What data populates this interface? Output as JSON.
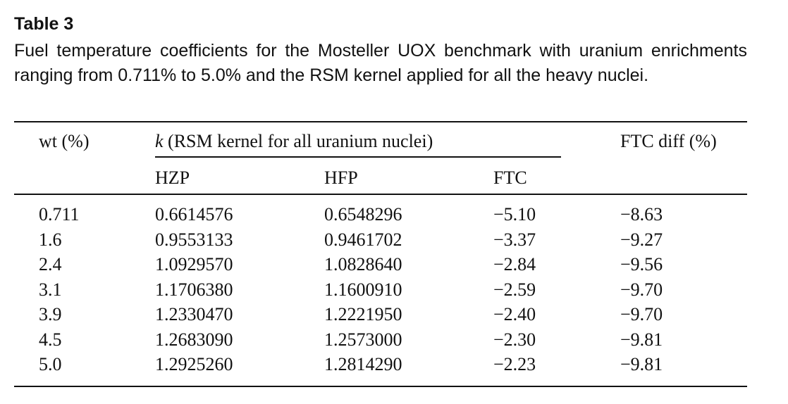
{
  "table": {
    "label": "Table 3",
    "caption": "Fuel temperature coefficients for the Mosteller UOX benchmark with uranium enrichments ranging from 0.711% to 5.0% and the RSM kernel applied for all the heavy nuclei.",
    "headers": {
      "wt": "wt (%)",
      "k_symbol": "k",
      "k_group": " (RSM kernel for all uranium nuclei)",
      "hzp": "HZP",
      "hfp": "HFP",
      "ftc": "FTC",
      "ftc_diff": "FTC diff (%)"
    },
    "rows": [
      {
        "wt": "0.711",
        "hzp": "0.6614576",
        "hfp": "0.6548296",
        "ftc": "−5.10",
        "diff": "−8.63"
      },
      {
        "wt": "1.6",
        "hzp": "0.9553133",
        "hfp": "0.9461702",
        "ftc": "−3.37",
        "diff": "−9.27"
      },
      {
        "wt": "2.4",
        "hzp": "1.0929570",
        "hfp": "1.0828640",
        "ftc": "−2.84",
        "diff": "−9.56"
      },
      {
        "wt": "3.1",
        "hzp": "1.1706380",
        "hfp": "1.1600910",
        "ftc": "−2.59",
        "diff": "−9.70"
      },
      {
        "wt": "3.9",
        "hzp": "1.2330470",
        "hfp": "1.2221950",
        "ftc": "−2.40",
        "diff": "−9.70"
      },
      {
        "wt": "4.5",
        "hzp": "1.2683090",
        "hfp": "1.2573000",
        "ftc": "−2.30",
        "diff": "−9.81"
      },
      {
        "wt": "5.0",
        "hzp": "1.2925260",
        "hfp": "1.2814290",
        "ftc": "−2.23",
        "diff": "−9.81"
      }
    ]
  }
}
